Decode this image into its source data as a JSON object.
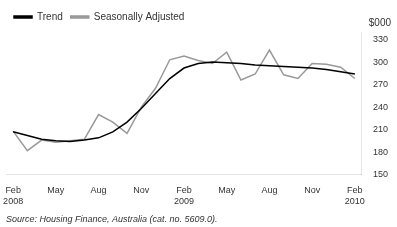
{
  "chart_data": {
    "type": "line",
    "categories": [
      "Feb\n2008",
      null,
      null,
      "May",
      null,
      null,
      "Aug",
      null,
      null,
      "Nov",
      null,
      null,
      "Feb\n2009",
      null,
      null,
      "May",
      null,
      null,
      "Aug",
      null,
      null,
      "Nov",
      null,
      null,
      "Feb\n2010"
    ],
    "series": [
      {
        "name": "Trend",
        "color": "#000000",
        "values": [
          207,
          202,
          197,
          195,
          194,
          196,
          199,
          207,
          220,
          238,
          258,
          278,
          292,
          298,
          300,
          299,
          298,
          296,
          295,
          294,
          293,
          292,
          290,
          287,
          284
        ]
      },
      {
        "name": "Seasonally Adjusted",
        "color": "#999999",
        "values": [
          208,
          182,
          196,
          193,
          195,
          197,
          230,
          220,
          205,
          240,
          265,
          303,
          308,
          302,
          298,
          313,
          276,
          284,
          316,
          283,
          278,
          298,
          297,
          293,
          278
        ]
      }
    ],
    "ylim": [
      150,
      340
    ],
    "yticks": [
      150,
      180,
      210,
      240,
      270,
      300,
      330
    ],
    "ylabel": "$000",
    "source": "Source: Housing Finance, Australia (cat. no. 5609.0).",
    "grid": false,
    "legend": "upper left"
  }
}
